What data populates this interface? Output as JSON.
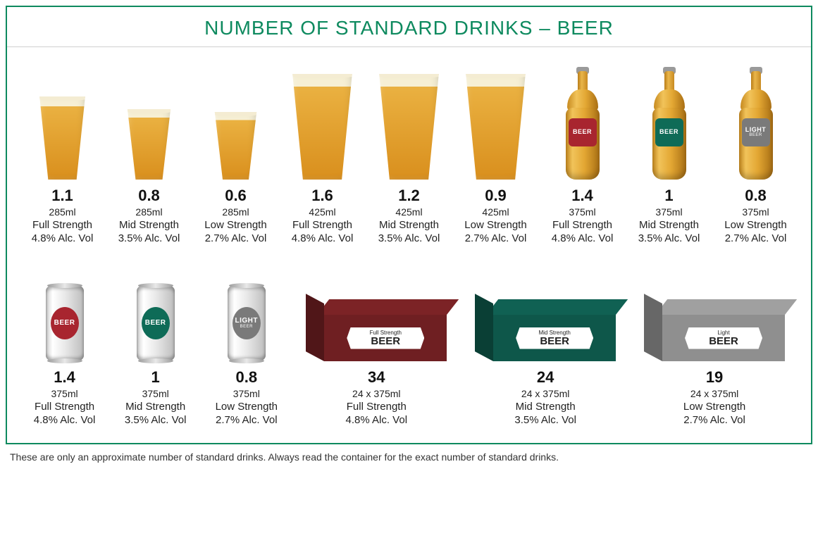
{
  "title": "NUMBER OF STANDARD DRINKS – BEER",
  "footnote": "These are only an approximate number of standard drinks. Always read the container for the exact number of standard drinks.",
  "colors": {
    "accent": "#0e8a5f",
    "beer_light": "#f1c35a",
    "beer_dark": "#d98f1d",
    "foam": "#f4ecd2",
    "label_red": "#a8252f",
    "label_green": "#0e6b57",
    "label_grey": "#8f8f8f",
    "slab_red": "#6f1f22",
    "slab_green": "#0e574a",
    "slab_grey": "#8f8f8f",
    "can_silver": "#e2e2e2"
  },
  "label_text": {
    "beer": "BEER",
    "light": "LIGHT",
    "light_sub": "BEER",
    "full_pre": "Full Strength",
    "mid_pre": "Mid Strength",
    "light_pre": "Light"
  },
  "row1": [
    {
      "kind": "glass",
      "size": "small",
      "drinks": "1.1",
      "volume": "285ml",
      "strength": "Full Strength",
      "alc": "4.8% Alc. Vol"
    },
    {
      "kind": "glass",
      "size": "small2",
      "drinks": "0.8",
      "volume": "285ml",
      "strength": "Mid Strength",
      "alc": "3.5% Alc. Vol"
    },
    {
      "kind": "glass",
      "size": "small3",
      "drinks": "0.6",
      "volume": "285ml",
      "strength": "Low Strength",
      "alc": "2.7% Alc. Vol"
    },
    {
      "kind": "glass",
      "size": "big",
      "drinks": "1.6",
      "volume": "425ml",
      "strength": "Full Strength",
      "alc": "4.8% Alc. Vol"
    },
    {
      "kind": "glass",
      "size": "big",
      "drinks": "1.2",
      "volume": "425ml",
      "strength": "Mid Strength",
      "alc": "3.5% Alc. Vol"
    },
    {
      "kind": "glass",
      "size": "big",
      "drinks": "0.9",
      "volume": "425ml",
      "strength": "Low Strength",
      "alc": "2.7% Alc. Vol"
    },
    {
      "kind": "bottle",
      "label_color": "#a8252f",
      "label": "BEER",
      "drinks": "1.4",
      "volume": "375ml",
      "strength": "Full Strength",
      "alc": "4.8% Alc. Vol"
    },
    {
      "kind": "bottle",
      "label_color": "#0e6b57",
      "label": "BEER",
      "drinks": "1",
      "volume": "375ml",
      "strength": "Mid Strength",
      "alc": "3.5% Alc. Vol"
    },
    {
      "kind": "bottle",
      "label_color": "#7a7a7a",
      "label": "LIGHT",
      "sub": "BEER",
      "drinks": "0.8",
      "volume": "375ml",
      "strength": "Low Strength",
      "alc": "2.7% Alc. Vol"
    }
  ],
  "row2": [
    {
      "kind": "can",
      "label_color": "#a8252f",
      "label": "BEER",
      "drinks": "1.4",
      "volume": "375ml",
      "strength": "Full Strength",
      "alc": "4.8% Alc. Vol"
    },
    {
      "kind": "can",
      "label_color": "#0e6b57",
      "label": "BEER",
      "drinks": "1",
      "volume": "375ml",
      "strength": "Mid Strength",
      "alc": "3.5% Alc. Vol"
    },
    {
      "kind": "can",
      "label_color": "#7a7a7a",
      "label": "LIGHT",
      "sub": "BEER",
      "drinks": "0.8",
      "volume": "375ml",
      "strength": "Low Strength",
      "alc": "2.7% Alc. Vol"
    },
    {
      "kind": "slab",
      "slab_color": "#6f1f22",
      "tag_pre": "Full Strength",
      "tag": "BEER",
      "drinks": "34",
      "volume": "24 x 375ml",
      "strength": "Full Strength",
      "alc": "4.8% Alc. Vol",
      "wide": true
    },
    {
      "kind": "slab",
      "slab_color": "#0e574a",
      "tag_pre": "Mid Strength",
      "tag": "BEER",
      "drinks": "24",
      "volume": "24 x 375ml",
      "strength": "Mid Strength",
      "alc": "3.5% Alc. Vol",
      "wide": true
    },
    {
      "kind": "slab",
      "slab_color": "#8f8f8f",
      "tag_pre": "Light",
      "tag": "BEER",
      "drinks": "19",
      "volume": "24 x 375ml",
      "strength": "Low Strength",
      "alc": "2.7% Alc. Vol",
      "wide": true
    }
  ],
  "typography": {
    "title_pt": 28,
    "drinks_pt": 22,
    "body_pt": 15,
    "footnote_pt": 14,
    "font_family": "Century Gothic / Futura style sans-serif"
  }
}
